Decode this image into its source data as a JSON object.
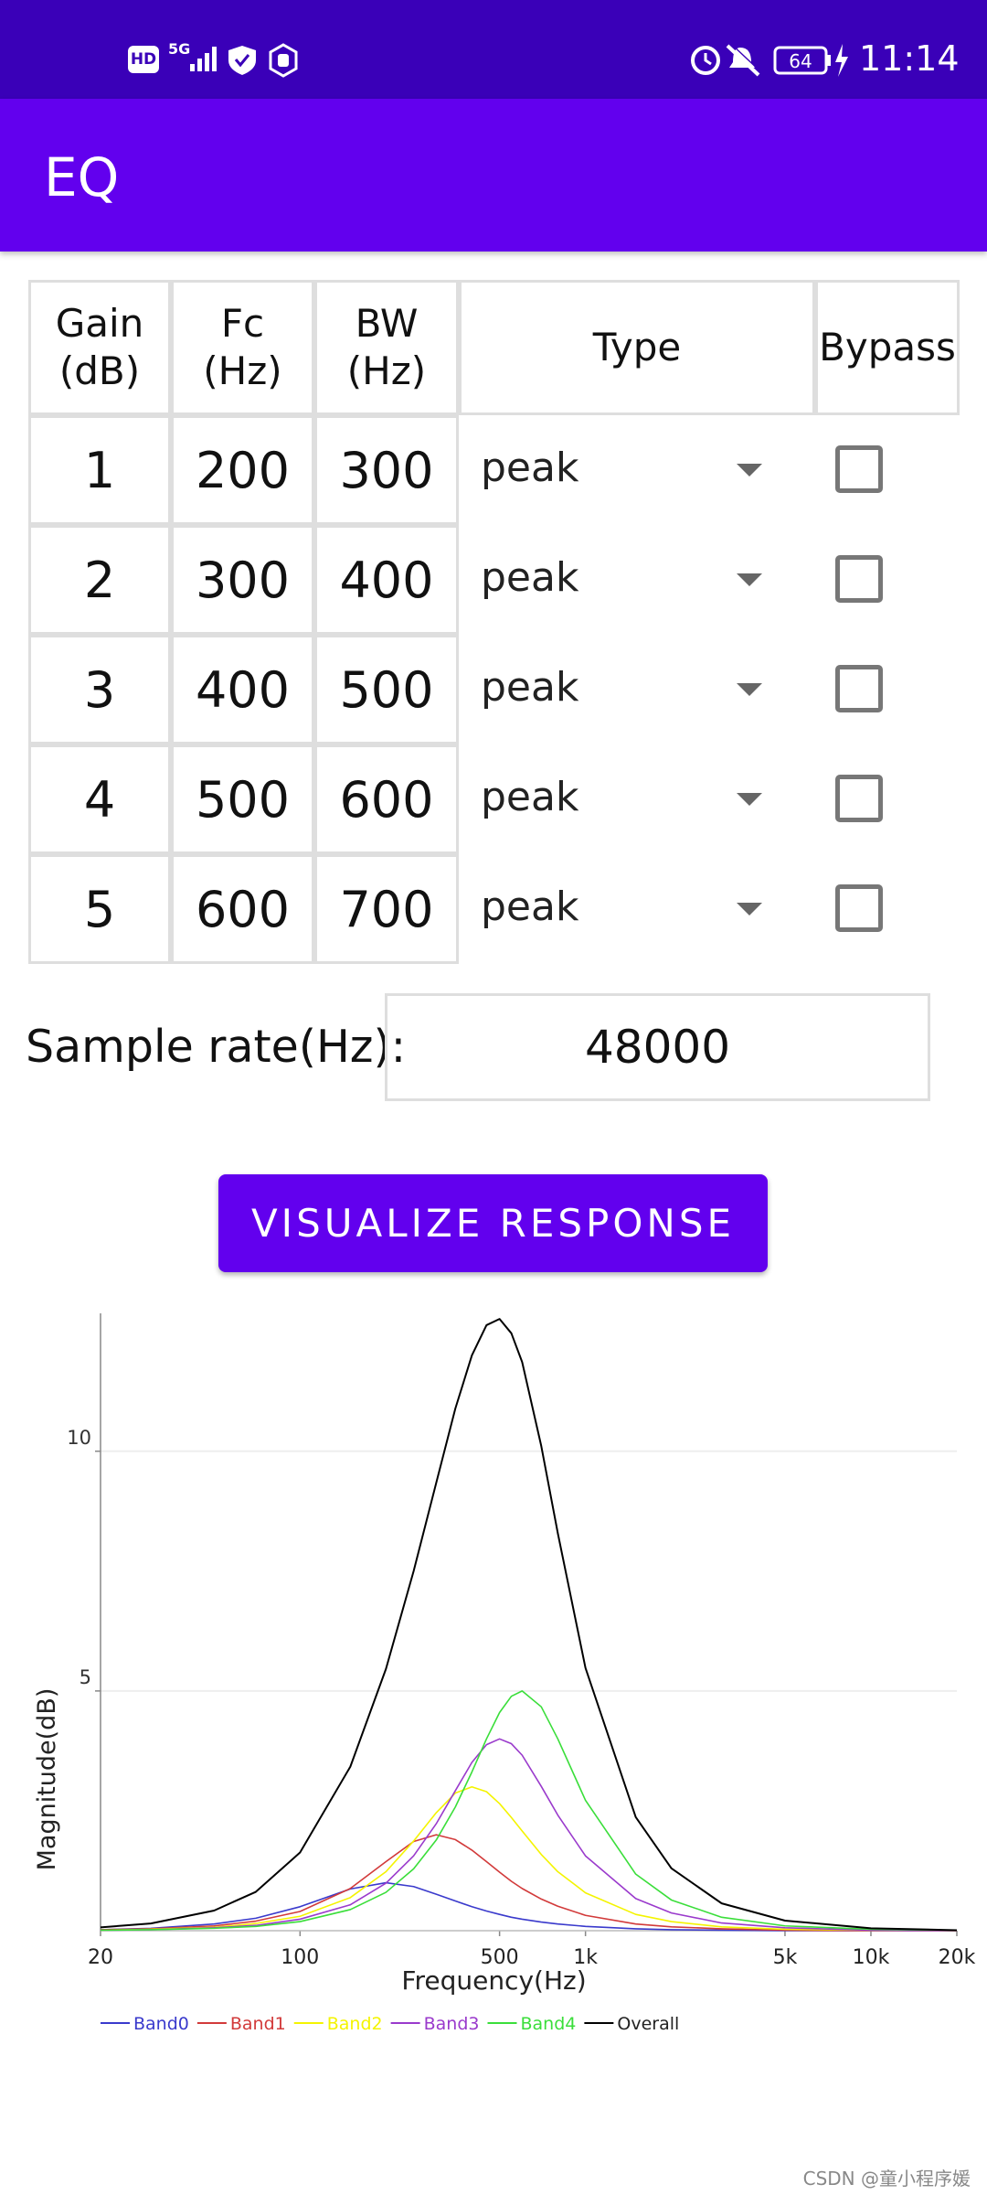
{
  "status_bar": {
    "hd": "HD",
    "network": "5G",
    "battery": "64",
    "time": "11:14"
  },
  "app_bar": {
    "title": "EQ"
  },
  "table": {
    "headers": [
      [
        "Gain",
        "(dB)"
      ],
      [
        "Fc",
        "(Hz)"
      ],
      [
        "BW",
        "(Hz)"
      ],
      [
        "Type"
      ],
      [
        "Bypass"
      ]
    ],
    "rows": [
      {
        "gain": 1,
        "fc": 200,
        "bw": 300,
        "type": "peak",
        "bypass": false
      },
      {
        "gain": 2,
        "fc": 300,
        "bw": 400,
        "type": "peak",
        "bypass": false
      },
      {
        "gain": 3,
        "fc": 400,
        "bw": 500,
        "type": "peak",
        "bypass": false
      },
      {
        "gain": 4,
        "fc": 500,
        "bw": 600,
        "type": "peak",
        "bypass": false
      },
      {
        "gain": 5,
        "fc": 600,
        "bw": 700,
        "type": "peak",
        "bypass": false
      }
    ]
  },
  "sample_rate": {
    "label": "Sample rate(Hz):",
    "value": 48000
  },
  "button": {
    "label": "VISUALIZE RESPONSE"
  },
  "chart_data": {
    "type": "line",
    "x_label": "Frequency(Hz)",
    "y_label": "Magnitude(dB)",
    "x_scale": "log",
    "xlim": [
      20,
      20000
    ],
    "xticks": [
      20,
      100,
      500,
      {
        "value": 1000,
        "label": "1k"
      },
      {
        "value": 5000,
        "label": "5k"
      },
      {
        "value": 10000,
        "label": "10k"
      },
      {
        "value": 20000,
        "label": "20k"
      }
    ],
    "ylim": [
      0,
      12.8
    ],
    "yticks": [
      5,
      10
    ],
    "grid": true,
    "legend": "bottom-left",
    "x": [
      20,
      30,
      50,
      70,
      100,
      150,
      200,
      250,
      300,
      350,
      400,
      450,
      500,
      550,
      600,
      700,
      800,
      1000,
      1500,
      2000,
      3000,
      5000,
      10000,
      20000
    ],
    "series": [
      {
        "name": "Band0",
        "color": "#3a3acc",
        "values": [
          0.02,
          0.05,
          0.14,
          0.26,
          0.5,
          0.87,
          1.0,
          0.92,
          0.76,
          0.62,
          0.5,
          0.41,
          0.34,
          0.28,
          0.24,
          0.18,
          0.14,
          0.09,
          0.04,
          0.02,
          0.01,
          0.0,
          0.0,
          0.0
        ]
      },
      {
        "name": "Band1",
        "color": "#d23a3a",
        "values": [
          0.02,
          0.04,
          0.1,
          0.2,
          0.4,
          0.88,
          1.44,
          1.86,
          2.0,
          1.9,
          1.68,
          1.44,
          1.22,
          1.03,
          0.88,
          0.66,
          0.51,
          0.32,
          0.14,
          0.08,
          0.04,
          0.01,
          0.0,
          0.0
        ]
      },
      {
        "name": "Band2",
        "color": "#f4f400",
        "values": [
          0.01,
          0.03,
          0.07,
          0.15,
          0.3,
          0.69,
          1.23,
          1.87,
          2.46,
          2.87,
          3.0,
          2.9,
          2.65,
          2.36,
          2.08,
          1.59,
          1.23,
          0.79,
          0.34,
          0.19,
          0.08,
          0.03,
          0.01,
          0.0
        ]
      },
      {
        "name": "Band3",
        "color": "#9a3acc",
        "values": [
          0.01,
          0.02,
          0.06,
          0.11,
          0.24,
          0.54,
          0.99,
          1.56,
          2.23,
          2.92,
          3.51,
          3.88,
          4.0,
          3.9,
          3.66,
          3.01,
          2.41,
          1.56,
          0.67,
          0.37,
          0.16,
          0.06,
          0.01,
          0.0
        ]
      },
      {
        "name": "Band4",
        "color": "#3ade3a",
        "values": [
          0.01,
          0.02,
          0.05,
          0.09,
          0.19,
          0.44,
          0.8,
          1.29,
          1.89,
          2.58,
          3.31,
          4.0,
          4.55,
          4.89,
          5.0,
          4.67,
          4.0,
          2.72,
          1.18,
          0.64,
          0.28,
          0.1,
          0.03,
          0.01
        ]
      },
      {
        "name": "Overall",
        "color": "#000000",
        "values": [
          0.07,
          0.15,
          0.42,
          0.81,
          1.63,
          3.42,
          5.46,
          7.5,
          9.34,
          10.89,
          12.0,
          12.63,
          12.76,
          12.46,
          11.86,
          10.11,
          8.29,
          5.48,
          2.37,
          1.3,
          0.57,
          0.21,
          0.05,
          0.01
        ]
      }
    ]
  },
  "watermark": "CSDN @童小程序媛"
}
